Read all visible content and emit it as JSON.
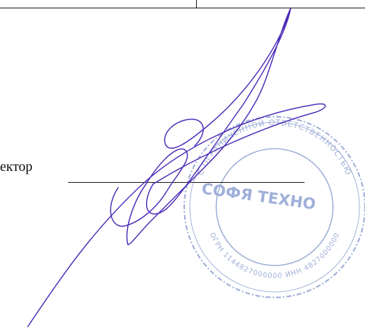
{
  "document": {
    "role_label": "ектор",
    "stamp": {
      "top_arc_text": "С ОГРАНИЧЕННОЙ ОТВЕТСТВЕННОСТЬЮ",
      "center_text": "СОФЯ ТЕХНО",
      "bottom_arc_text": "ОГРН 1144827000000 ИНН 4827000000",
      "ink_color": "#9fb0d8"
    },
    "signature": {
      "ink_color": "#4b2bb8"
    }
  }
}
